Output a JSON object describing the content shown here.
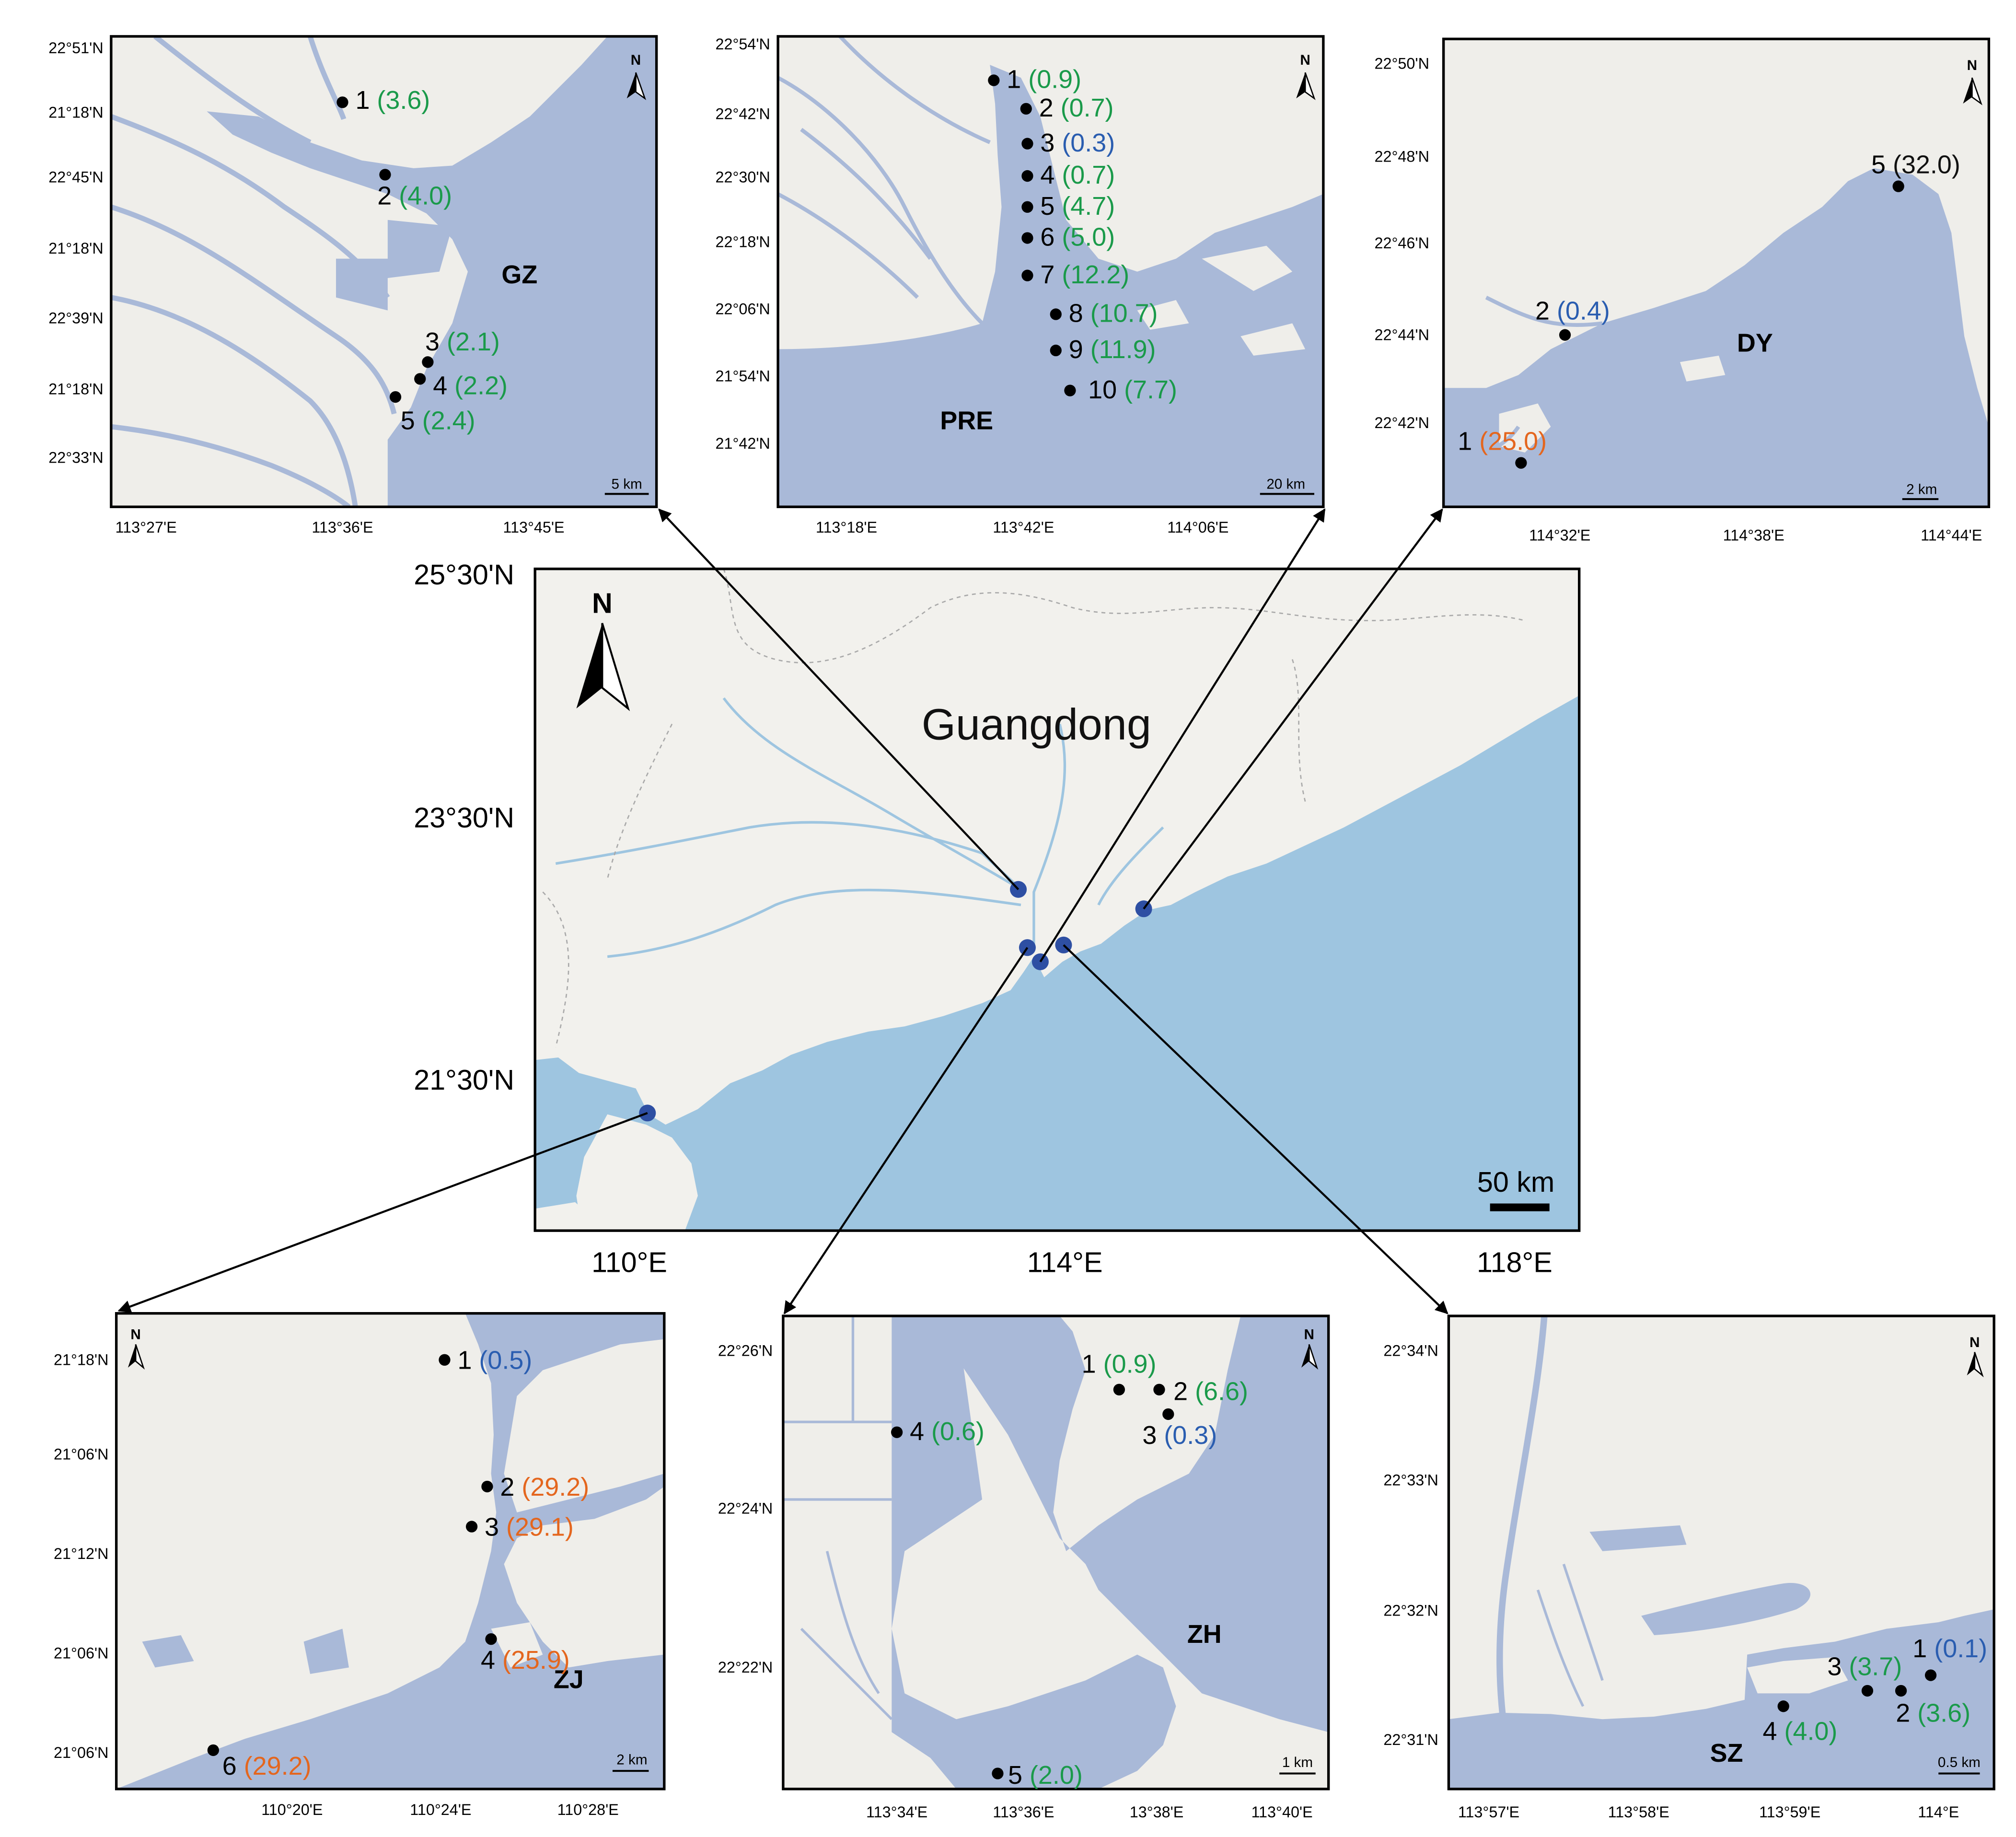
{
  "main_map": {
    "title": "Guangdong",
    "north_label": "N",
    "scale_label": "50 km",
    "lat_labels": [
      "25°30'N",
      "23°30'N",
      "21°30'N"
    ],
    "lon_labels": [
      "110°E",
      "114°E",
      "118°E"
    ],
    "colors": {
      "land": "#f2f1ed",
      "sea": "#9ec5e0",
      "site": "#2e4fa3"
    }
  },
  "insets": [
    {
      "id": "GZ",
      "title": "GZ",
      "scale_label": "5 km",
      "north_label": "N",
      "lat_labels": [
        "22°51'N",
        "21°18'N",
        "22°45'N",
        "21°18'N",
        "22°39'N",
        "21°18'N",
        "22°33'N"
      ],
      "lon_labels": [
        "113°27'E",
        "113°36'E",
        "113°45'E"
      ],
      "sites": [
        {
          "num": "1",
          "value": "(3.6)",
          "color": "green"
        },
        {
          "num": "2",
          "value": "(4.0)",
          "color": "green"
        },
        {
          "num": "3",
          "value": "(2.1)",
          "color": "green"
        },
        {
          "num": "4",
          "value": "(2.2)",
          "color": "green"
        },
        {
          "num": "5",
          "value": "(2.4)",
          "color": "green"
        }
      ]
    },
    {
      "id": "PRE",
      "title": "PRE",
      "scale_label": "20 km",
      "north_label": "N",
      "lat_labels": [
        "22°54'N",
        "22°42'N",
        "22°30'N",
        "22°18'N",
        "22°06'N",
        "21°54'N",
        "21°42'N"
      ],
      "lon_labels": [
        "113°18'E",
        "113°42'E",
        "114°06'E"
      ],
      "sites": [
        {
          "num": "1",
          "value": "(0.9)",
          "color": "green"
        },
        {
          "num": "2",
          "value": "(0.7)",
          "color": "green"
        },
        {
          "num": "3",
          "value": "(0.3)",
          "color": "blue"
        },
        {
          "num": "4",
          "value": "(0.7)",
          "color": "green"
        },
        {
          "num": "5",
          "value": "(4.7)",
          "color": "green"
        },
        {
          "num": "6",
          "value": "(5.0)",
          "color": "green"
        },
        {
          "num": "7",
          "value": "(12.2)",
          "color": "green"
        },
        {
          "num": "8",
          "value": "(10.7)",
          "color": "green"
        },
        {
          "num": "9",
          "value": "(11.9)",
          "color": "green"
        },
        {
          "num": "10",
          "value": "(7.7)",
          "color": "green"
        }
      ]
    },
    {
      "id": "DY",
      "title": "DY",
      "scale_label": "2 km",
      "north_label": "N",
      "lat_labels": [
        "22°50'N",
        "22°48'N",
        "22°46'N",
        "22°44'N",
        "22°42'N"
      ],
      "lon_labels": [
        "114°32'E",
        "114°38'E",
        "114°44'E"
      ],
      "sites": [
        {
          "num": "5",
          "value": "(32.0)",
          "color": "black"
        },
        {
          "num": "2",
          "value": "(0.4)",
          "color": "blue"
        },
        {
          "num": "1",
          "value": "(25.0)",
          "color": "orange"
        }
      ]
    },
    {
      "id": "ZJ",
      "title": "ZJ",
      "scale_label": "2 km",
      "north_label": "N",
      "lat_labels": [
        "21°18'N",
        "21°06'N",
        "21°12'N",
        "21°06'N",
        "21°06'N"
      ],
      "lon_labels": [
        "110°20'E",
        "110°24'E",
        "110°28'E"
      ],
      "sites": [
        {
          "num": "1",
          "value": "(0.5)",
          "color": "blue"
        },
        {
          "num": "2",
          "value": "(29.2)",
          "color": "orange"
        },
        {
          "num": "3",
          "value": "(29.1)",
          "color": "orange"
        },
        {
          "num": "4",
          "value": "(25.9)",
          "color": "orange"
        },
        {
          "num": "6",
          "value": "(29.2)",
          "color": "orange"
        }
      ]
    },
    {
      "id": "ZH",
      "title": "ZH",
      "scale_label": "1 km",
      "north_label": "N",
      "lat_labels": [
        "22°26'N",
        "22°24'N",
        "22°22'N"
      ],
      "lon_labels": [
        "113°34'E",
        "113°36'E",
        "13°38'E",
        "113°40'E"
      ],
      "sites": [
        {
          "num": "1",
          "value": "(0.9)",
          "color": "green"
        },
        {
          "num": "2",
          "value": "(6.6)",
          "color": "green"
        },
        {
          "num": "3",
          "value": "(0.3)",
          "color": "blue"
        },
        {
          "num": "4",
          "value": "(0.6)",
          "color": "green"
        },
        {
          "num": "5",
          "value": "(2.0)",
          "color": "green"
        }
      ]
    },
    {
      "id": "SZ",
      "title": "SZ",
      "scale_label": "0.5 km",
      "north_label": "N",
      "lat_labels": [
        "22°34'N",
        "22°33'N",
        "22°32'N",
        "22°31'N"
      ],
      "lon_labels": [
        "113°57'E",
        "113°58'E",
        "113°59'E",
        "114°E"
      ],
      "sites": [
        {
          "num": "1",
          "value": "(0.1)",
          "color": "blue"
        },
        {
          "num": "3",
          "value": "(3.7)",
          "color": "green"
        },
        {
          "num": "2",
          "value": "(3.6)",
          "color": "green"
        },
        {
          "num": "4",
          "value": "(4.0)",
          "color": "green"
        }
      ]
    }
  ],
  "value_colors": {
    "green": "#1a9a4a",
    "blue": "#2a5db0",
    "orange": "#e4661e",
    "black": "#111111"
  },
  "inset_colors": {
    "land": "#efeeea",
    "water": "#a9b9d8"
  }
}
